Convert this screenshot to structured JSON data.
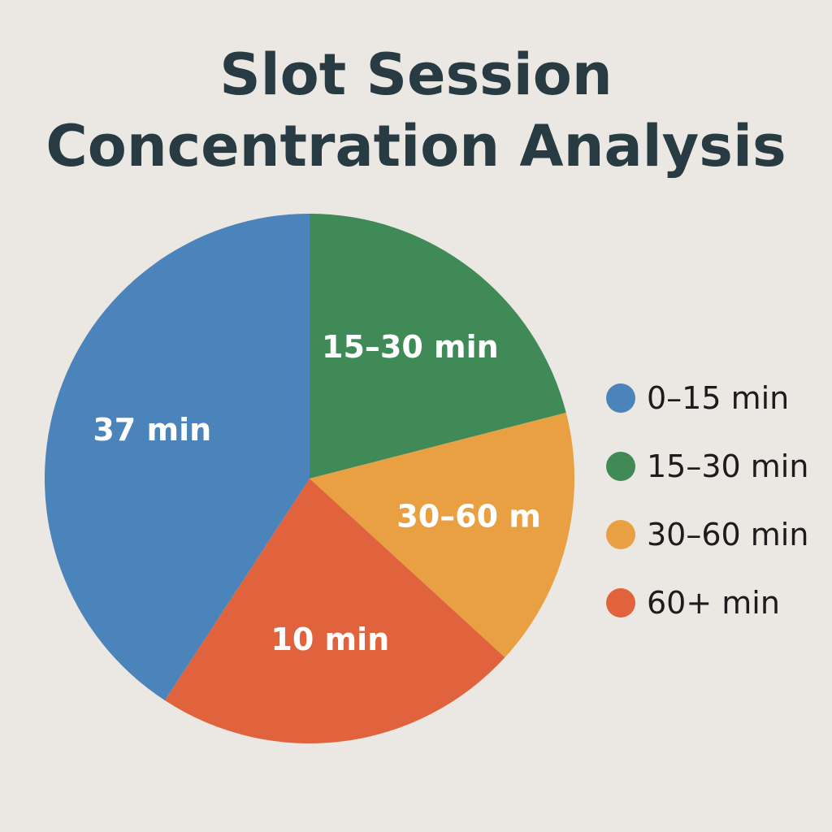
{
  "title_lines": [
    "Slot Session",
    "Concentration Analysis"
  ],
  "chart_data": {
    "type": "pie",
    "title": "Slot Session Concentration Analysis",
    "slices": [
      {
        "legend": "0–15 min",
        "label": "37 min",
        "value": 40.8,
        "color": "#4a84ba"
      },
      {
        "legend": "15–30 min",
        "label": "15–30 min",
        "value": 21.0,
        "color": "#3f8a56"
      },
      {
        "legend": "30–60 min",
        "label": "30–60 m",
        "value": 15.8,
        "color": "#e8a042"
      },
      {
        "legend": "60+ min",
        "label": "10 min",
        "value": 22.4,
        "color": "#e0633d"
      }
    ],
    "legend_order": [
      "0–15 min",
      "15–30 min",
      "30–60 min",
      "60+ min"
    ],
    "legend_position": "right"
  }
}
